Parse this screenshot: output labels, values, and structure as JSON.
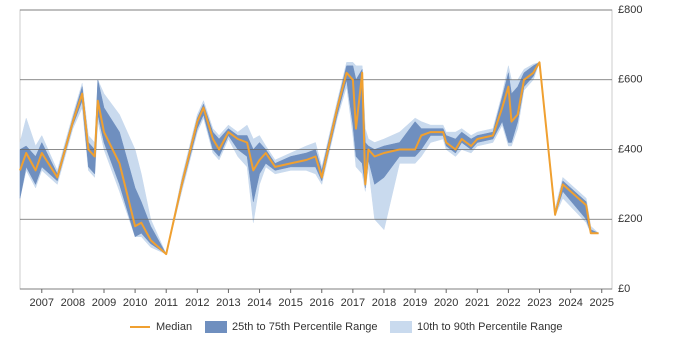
{
  "chart_data": {
    "type": "range_line",
    "x": [
      2006.3,
      2006.5,
      2006.8,
      2007.0,
      2007.5,
      2008.0,
      2008.3,
      2008.5,
      2008.7,
      2008.8,
      2009.0,
      2009.5,
      2010.0,
      2010.2,
      2010.5,
      2011.0,
      2011.5,
      2012.0,
      2012.2,
      2012.5,
      2012.7,
      2013.0,
      2013.3,
      2013.6,
      2013.8,
      2014.0,
      2014.2,
      2014.5,
      2015.0,
      2015.5,
      2015.8,
      2016.0,
      2016.5,
      2016.8,
      2017.0,
      2017.1,
      2017.3,
      2017.4,
      2017.5,
      2017.7,
      2018.0,
      2018.5,
      2019.0,
      2019.2,
      2019.5,
      2019.9,
      2020.0,
      2020.3,
      2020.5,
      2020.8,
      2021.0,
      2021.5,
      2021.8,
      2022.0,
      2022.1,
      2022.3,
      2022.5,
      2022.8,
      2023.0,
      2023.5,
      2023.75,
      2024.5,
      2024.65,
      2024.9
    ],
    "series": [
      {
        "name": "Median",
        "color": "#f0a030",
        "values": [
          340,
          390,
          340,
          390,
          320,
          480,
          560,
          400,
          380,
          540,
          450,
          360,
          180,
          190,
          140,
          100,
          300,
          480,
          520,
          430,
          400,
          450,
          430,
          420,
          340,
          370,
          390,
          350,
          360,
          370,
          380,
          320,
          520,
          620,
          600,
          460,
          620,
          300,
          400,
          380,
          390,
          400,
          400,
          440,
          450,
          450,
          420,
          400,
          430,
          410,
          430,
          440,
          520,
          580,
          480,
          500,
          600,
          620,
          650,
          213,
          300,
          240,
          160,
          160
        ]
      },
      {
        "name": "25th to 75th Percentile Range",
        "color": "#6f8fbf",
        "low": [
          260,
          350,
          300,
          350,
          310,
          470,
          540,
          350,
          330,
          500,
          420,
          300,
          150,
          160,
          130,
          100,
          290,
          460,
          500,
          400,
          380,
          440,
          400,
          380,
          250,
          330,
          360,
          340,
          350,
          350,
          350,
          310,
          500,
          600,
          470,
          380,
          360,
          290,
          370,
          300,
          320,
          380,
          380,
          400,
          440,
          440,
          410,
          390,
          420,
          400,
          420,
          430,
          480,
          420,
          420,
          480,
          580,
          610,
          650,
          210,
          280,
          200,
          160,
          160
        ],
        "high": [
          400,
          410,
          380,
          420,
          330,
          490,
          580,
          420,
          400,
          600,
          520,
          450,
          290,
          250,
          180,
          100,
          310,
          490,
          530,
          450,
          430,
          460,
          440,
          440,
          400,
          420,
          400,
          360,
          380,
          390,
          400,
          340,
          530,
          640,
          640,
          600,
          630,
          420,
          410,
          400,
          410,
          420,
          480,
          460,
          460,
          460,
          440,
          430,
          450,
          430,
          440,
          450,
          550,
          620,
          560,
          580,
          620,
          640,
          650,
          220,
          310,
          250,
          170,
          160
        ]
      },
      {
        "name": "10th to 90th Percentile Range",
        "color": "#c9daee",
        "low": [
          260,
          340,
          290,
          340,
          300,
          460,
          520,
          340,
          320,
          480,
          400,
          280,
          150,
          150,
          120,
          100,
          280,
          450,
          490,
          390,
          370,
          430,
          380,
          350,
          190,
          300,
          350,
          330,
          340,
          340,
          330,
          300,
          490,
          580,
          440,
          350,
          330,
          280,
          350,
          200,
          170,
          360,
          360,
          380,
          420,
          430,
          400,
          380,
          400,
          390,
          410,
          420,
          470,
          410,
          410,
          460,
          570,
          600,
          650,
          210,
          260,
          190,
          160,
          160
        ],
        "high": [
          420,
          490,
          410,
          440,
          340,
          500,
          590,
          440,
          420,
          600,
          560,
          500,
          400,
          330,
          200,
          100,
          320,
          500,
          540,
          460,
          440,
          470,
          450,
          470,
          430,
          440,
          410,
          370,
          390,
          410,
          420,
          350,
          540,
          650,
          650,
          640,
          640,
          460,
          430,
          420,
          430,
          450,
          490,
          480,
          470,
          470,
          450,
          450,
          460,
          440,
          450,
          460,
          560,
          640,
          600,
          600,
          630,
          645,
          650,
          230,
          320,
          260,
          180,
          160
        ]
      }
    ],
    "xlim": [
      2006.3,
      2025.33
    ],
    "xticks": [
      2007,
      2008,
      2009,
      2010,
      2011,
      2012,
      2013,
      2014,
      2015,
      2016,
      2017,
      2018,
      2019,
      2020,
      2021,
      2022,
      2023,
      2024,
      2025
    ],
    "ylim": [
      0,
      800
    ],
    "yticks": [
      {
        "value": 0,
        "label": "£0"
      },
      {
        "value": 200,
        "label": "£200"
      },
      {
        "value": 400,
        "label": "£400"
      },
      {
        "value": 600,
        "label": "£600"
      },
      {
        "value": 800,
        "label": "£800"
      }
    ],
    "grid": true,
    "legend": "bottom"
  }
}
